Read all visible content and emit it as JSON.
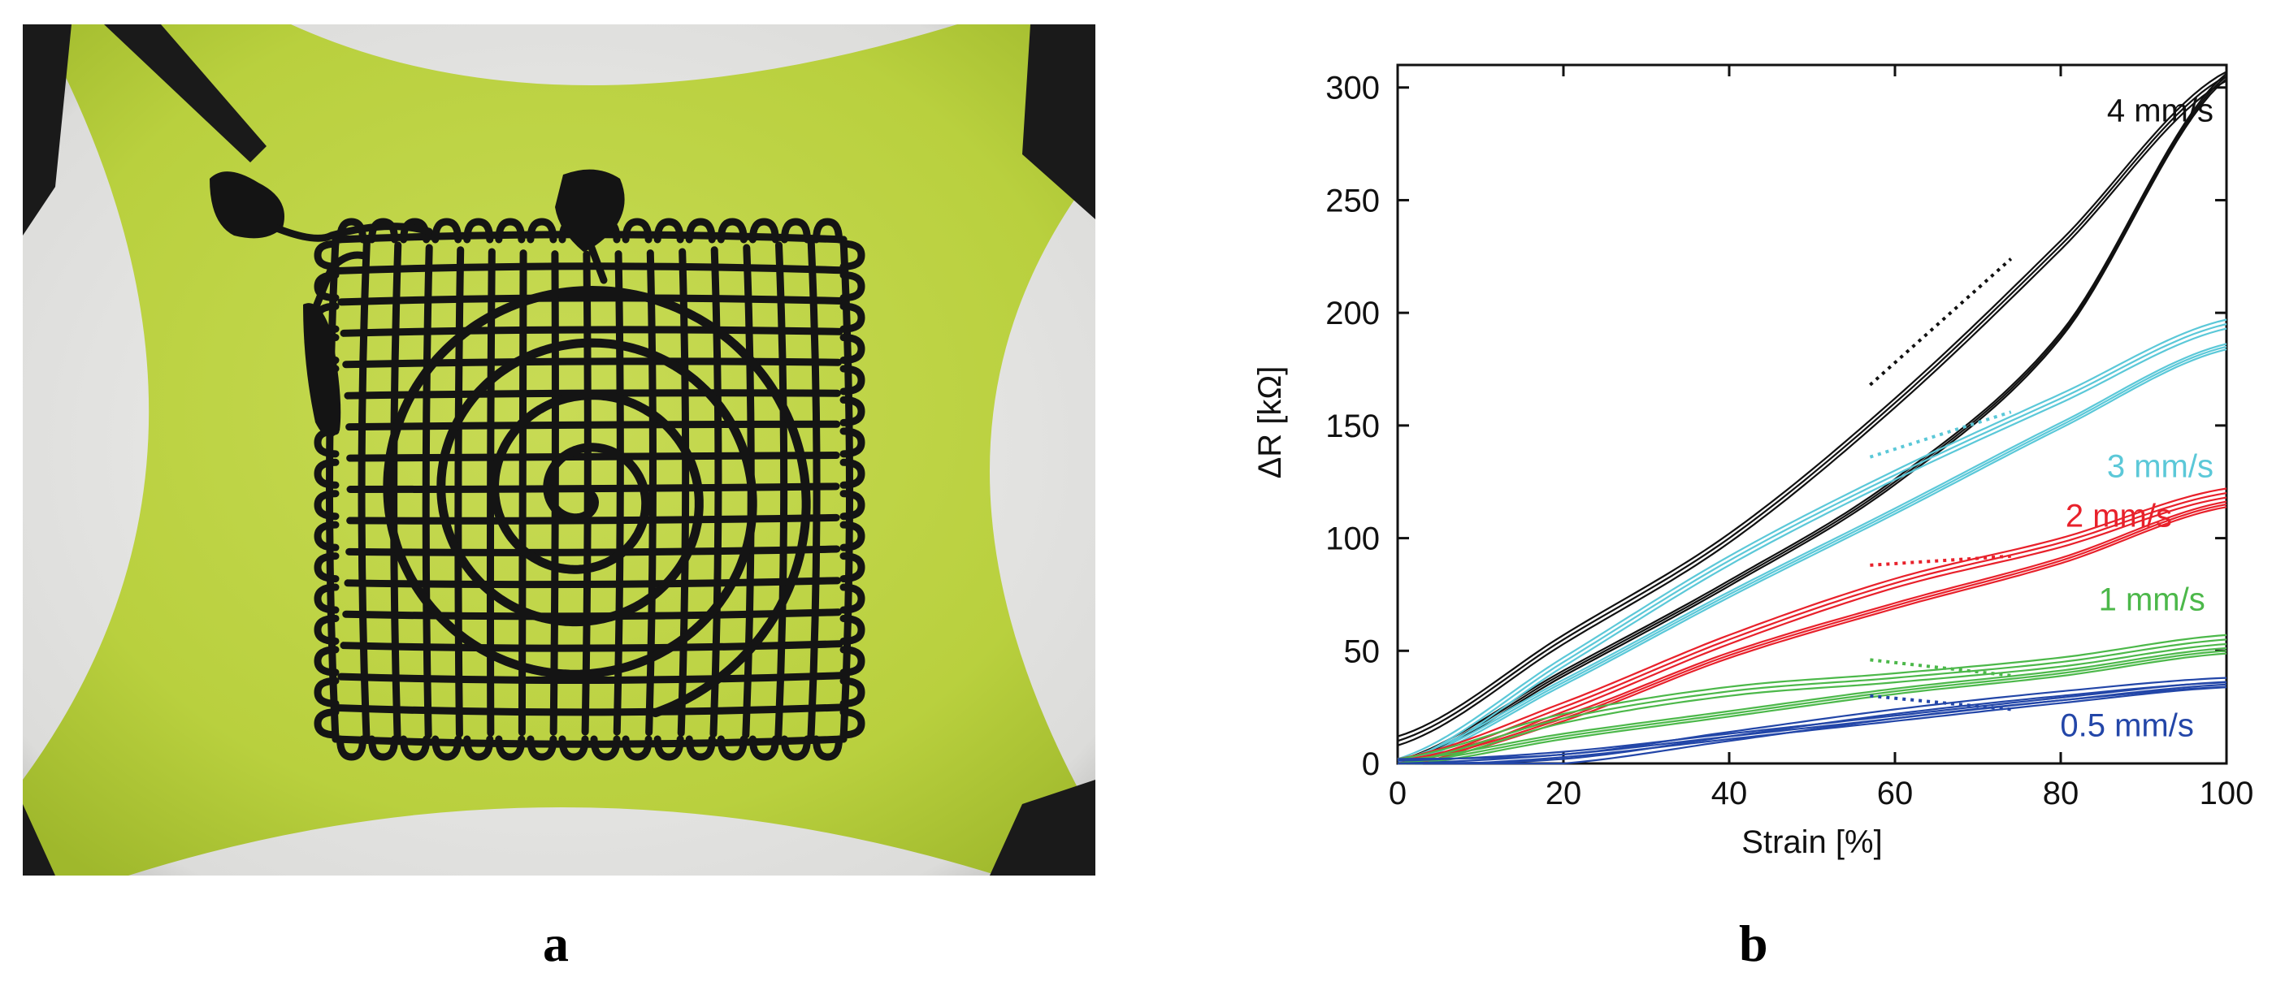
{
  "figure": {
    "panel_a_label": "a",
    "panel_b_label": "b"
  },
  "photo": {
    "substrate_color": "#c2d84a",
    "background_color": "#e8e8e6",
    "trace_color": "#141414"
  },
  "chart_data": {
    "type": "line",
    "title": "",
    "xlabel": "Strain [%]",
    "ylabel": "ΔR [kΩ]",
    "xlim": [
      0,
      100
    ],
    "ylim": [
      0,
      310
    ],
    "xticks": [
      0,
      20,
      40,
      60,
      80,
      100
    ],
    "yticks": [
      0,
      50,
      100,
      150,
      200,
      250,
      300
    ],
    "grid": false,
    "legend": "inline labels at right",
    "series": [
      {
        "name": "4 mm/s",
        "color": "#111111",
        "label_at": [
          92,
          285
        ],
        "loading": {
          "x": [
            0,
            20,
            40,
            60,
            80,
            100
          ],
          "y": [
            10,
            55,
            100,
            160,
            230,
            305
          ]
        },
        "unloading": {
          "x": [
            100,
            80,
            60,
            40,
            20,
            0
          ],
          "y": [
            305,
            190,
            125,
            80,
            40,
            0
          ]
        }
      },
      {
        "name": "3 mm/s",
        "color": "#5bc8d8",
        "label_at": [
          92,
          127
        ],
        "loading": {
          "x": [
            0,
            20,
            40,
            60,
            80,
            100
          ],
          "y": [
            0,
            45,
            90,
            128,
            162,
            195
          ]
        },
        "unloading": {
          "x": [
            100,
            80,
            60,
            40,
            20,
            0
          ],
          "y": [
            185,
            150,
            112,
            75,
            36,
            0
          ]
        }
      },
      {
        "name": "2 mm/s",
        "color": "#e8212b",
        "label_at": [
          87,
          105
        ],
        "loading": {
          "x": [
            0,
            20,
            40,
            60,
            80,
            100
          ],
          "y": [
            0,
            25,
            55,
            80,
            98,
            120
          ]
        },
        "unloading": {
          "x": [
            100,
            80,
            60,
            40,
            20,
            0
          ],
          "y": [
            115,
            90,
            70,
            48,
            20,
            0
          ]
        }
      },
      {
        "name": "1 mm/s",
        "color": "#4cb84a",
        "label_at": [
          91,
          68
        ],
        "loading": {
          "x": [
            0,
            20,
            40,
            60,
            80,
            100
          ],
          "y": [
            0,
            20,
            32,
            38,
            45,
            55
          ]
        },
        "unloading": {
          "x": [
            100,
            80,
            60,
            40,
            20,
            0
          ],
          "y": [
            50,
            40,
            32,
            22,
            12,
            0
          ]
        }
      },
      {
        "name": "0.5 mm/s",
        "color": "#2346a8",
        "label_at": [
          88,
          12
        ],
        "loading": {
          "x": [
            0,
            20,
            40,
            60,
            80,
            100
          ],
          "y": [
            0,
            2,
            12,
            22,
            30,
            36
          ]
        },
        "unloading": {
          "x": [
            100,
            80,
            60,
            40,
            20,
            0
          ],
          "y": [
            35,
            28,
            20,
            12,
            4,
            0
          ]
        }
      }
    ]
  }
}
